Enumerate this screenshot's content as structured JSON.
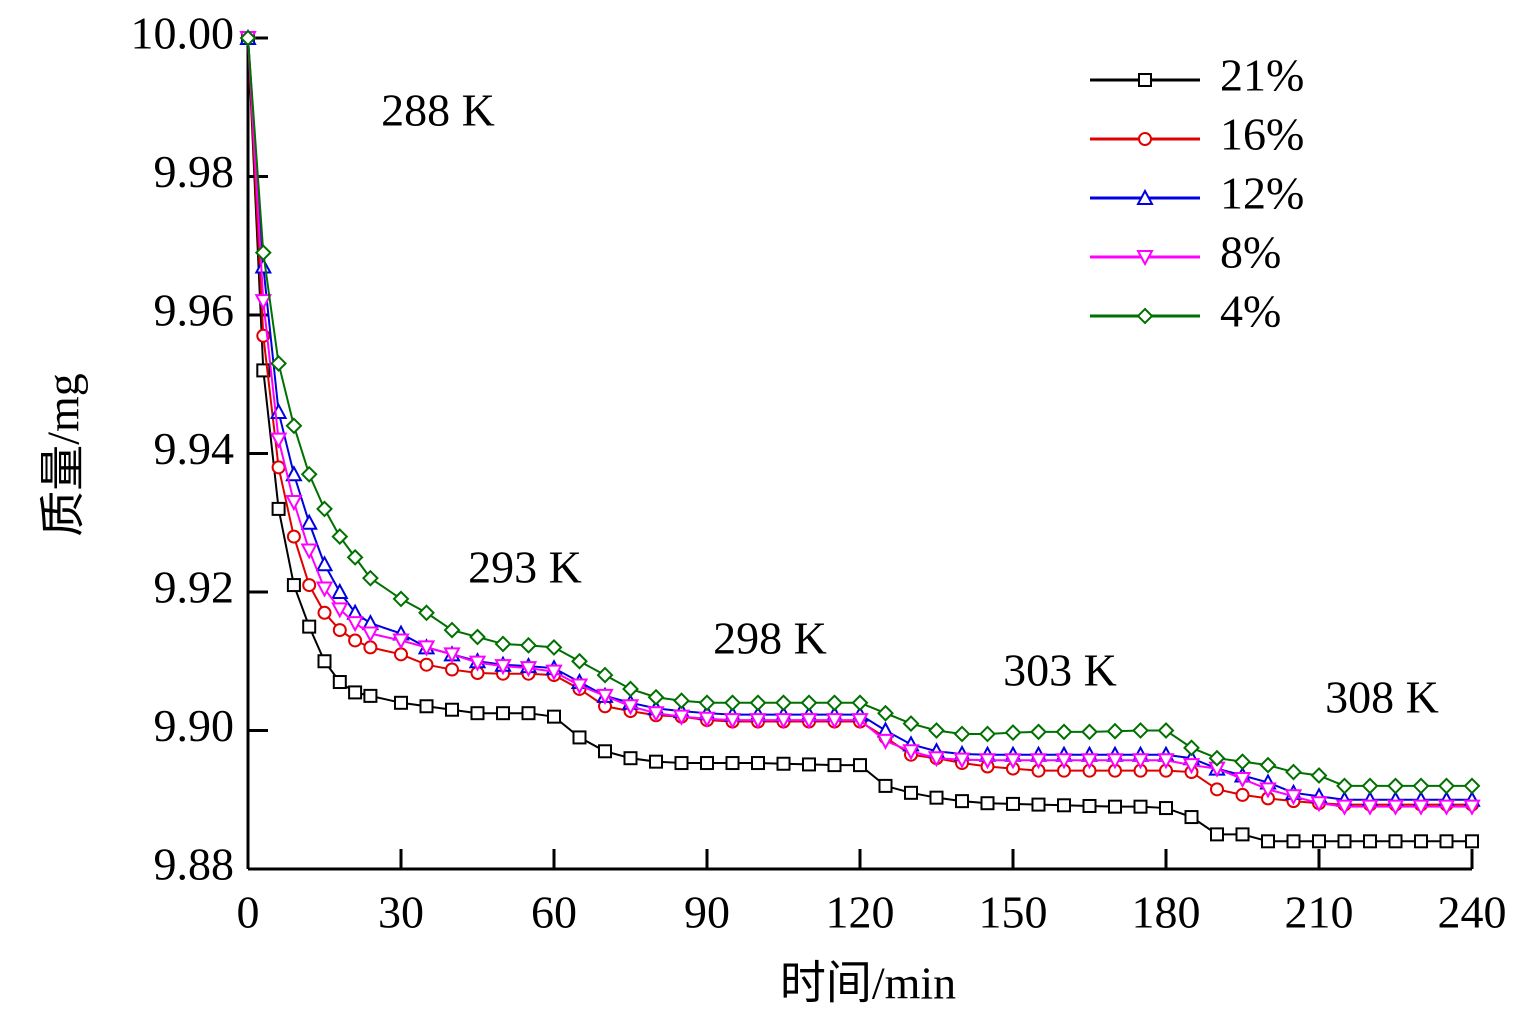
{
  "chart_data": {
    "type": "line",
    "x_label": "时间/min",
    "y_label": "质量/mg",
    "annotations": [
      "288 K",
      "293 K",
      "298 K",
      "303 K",
      "308 K"
    ],
    "x": [
      0,
      3,
      6,
      9,
      12,
      15,
      18,
      21,
      24,
      30,
      35,
      40,
      45,
      50,
      55,
      60,
      65,
      70,
      75,
      80,
      85,
      90,
      95,
      100,
      105,
      110,
      115,
      120,
      125,
      130,
      135,
      140,
      145,
      150,
      155,
      160,
      165,
      170,
      175,
      180,
      185,
      190,
      195,
      200,
      205,
      210,
      215,
      220,
      225,
      230,
      235,
      240
    ],
    "xlim": [
      0,
      240
    ],
    "xticks": [
      0,
      30,
      60,
      90,
      120,
      150,
      180,
      210,
      240
    ],
    "ylim": [
      9.88,
      10.0
    ],
    "yticks": [
      9.88,
      {
        "value": 9.9,
        "label": "9.90"
      },
      9.92,
      9.94,
      9.96,
      9.98,
      {
        "value": 10.0,
        "label": "10.00"
      }
    ],
    "legend": "upper right",
    "series": [
      {
        "name": "21%",
        "color": "#000000",
        "marker": "square",
        "values": [
          10,
          9.952,
          9.932,
          9.921,
          9.915,
          9.91,
          9.907,
          9.9055,
          9.905,
          9.904,
          9.9035,
          9.903,
          9.9025,
          9.9025,
          9.9025,
          9.902,
          9.899,
          9.897,
          9.896,
          9.8955,
          9.8953,
          9.8953,
          9.8953,
          9.8953,
          9.8952,
          9.8951,
          9.895,
          9.895,
          9.892,
          9.891,
          9.8903,
          9.8898,
          9.8895,
          9.8894,
          9.8893,
          9.8892,
          9.8891,
          9.889,
          9.889,
          9.8888,
          9.8875,
          9.885,
          9.885,
          9.884,
          9.884,
          9.884,
          9.884,
          9.884,
          9.884,
          9.884,
          9.884,
          9.884
        ]
      },
      {
        "name": "16%",
        "color": "#e00000",
        "marker": "circle",
        "values": [
          10,
          9.957,
          9.938,
          9.928,
          9.921,
          9.917,
          9.9145,
          9.913,
          9.912,
          9.911,
          9.9095,
          9.9088,
          9.9083,
          9.9082,
          9.9082,
          9.908,
          9.906,
          9.9035,
          9.9028,
          9.9022,
          9.902,
          9.9015,
          9.9013,
          9.9013,
          9.9013,
          9.9013,
          9.9013,
          9.9013,
          9.899,
          9.8965,
          9.896,
          9.8953,
          9.8948,
          9.8945,
          9.8942,
          9.8942,
          9.8942,
          9.8942,
          9.8942,
          9.8942,
          9.894,
          9.8915,
          9.8907,
          9.8902,
          9.8898,
          9.8895,
          9.8893,
          9.8893,
          9.8893,
          9.8893,
          9.8893,
          9.8893
        ]
      },
      {
        "name": "12%",
        "color": "#0000e0",
        "marker": "triangle-up",
        "values": [
          10,
          9.967,
          9.946,
          9.937,
          9.93,
          9.924,
          9.92,
          9.917,
          9.9155,
          9.914,
          9.912,
          9.911,
          9.91,
          9.9095,
          9.9093,
          9.909,
          9.907,
          9.905,
          9.904,
          9.9032,
          9.9028,
          9.9025,
          9.9023,
          9.9023,
          9.9023,
          9.9023,
          9.9023,
          9.9023,
          9.9,
          9.898,
          9.897,
          9.8966,
          9.8965,
          9.8965,
          9.8965,
          9.8965,
          9.8965,
          9.8965,
          9.8965,
          9.8965,
          9.896,
          9.8945,
          9.8935,
          9.8925,
          9.891,
          9.8905,
          9.89,
          9.89,
          9.89,
          9.89,
          9.89,
          9.89
        ]
      },
      {
        "name": "8%",
        "color": "#ff00ff",
        "marker": "triangle-down",
        "values": [
          10,
          9.962,
          9.942,
          9.933,
          9.926,
          9.9205,
          9.9175,
          9.9155,
          9.914,
          9.913,
          9.912,
          9.911,
          9.9098,
          9.9093,
          9.909,
          9.9085,
          9.9065,
          9.905,
          9.9035,
          9.9025,
          9.902,
          9.9017,
          9.9015,
          9.9015,
          9.9015,
          9.9015,
          9.9015,
          9.9015,
          9.8985,
          9.897,
          9.896,
          9.8958,
          9.8957,
          9.8957,
          9.8957,
          9.8957,
          9.8957,
          9.8957,
          9.8957,
          9.8957,
          9.895,
          9.8945,
          9.893,
          9.8915,
          9.8905,
          9.8895,
          9.889,
          9.889,
          9.889,
          9.889,
          9.889,
          9.889
        ]
      },
      {
        "name": "4%",
        "color": "#007000",
        "marker": "diamond",
        "values": [
          10,
          9.969,
          9.953,
          9.944,
          9.937,
          9.932,
          9.928,
          9.925,
          9.922,
          9.919,
          9.917,
          9.9145,
          9.9135,
          9.9125,
          9.9123,
          9.912,
          9.91,
          9.908,
          9.906,
          9.9048,
          9.9043,
          9.904,
          9.904,
          9.904,
          9.904,
          9.904,
          9.904,
          9.904,
          9.9025,
          9.901,
          9.9,
          9.8995,
          9.8995,
          9.8997,
          9.8998,
          9.8998,
          9.8998,
          9.8999,
          9.9,
          9.9,
          9.8975,
          9.896,
          9.8955,
          9.895,
          9.894,
          9.8935,
          9.892,
          9.892,
          9.892,
          9.892,
          9.892,
          9.892
        ]
      }
    ]
  }
}
